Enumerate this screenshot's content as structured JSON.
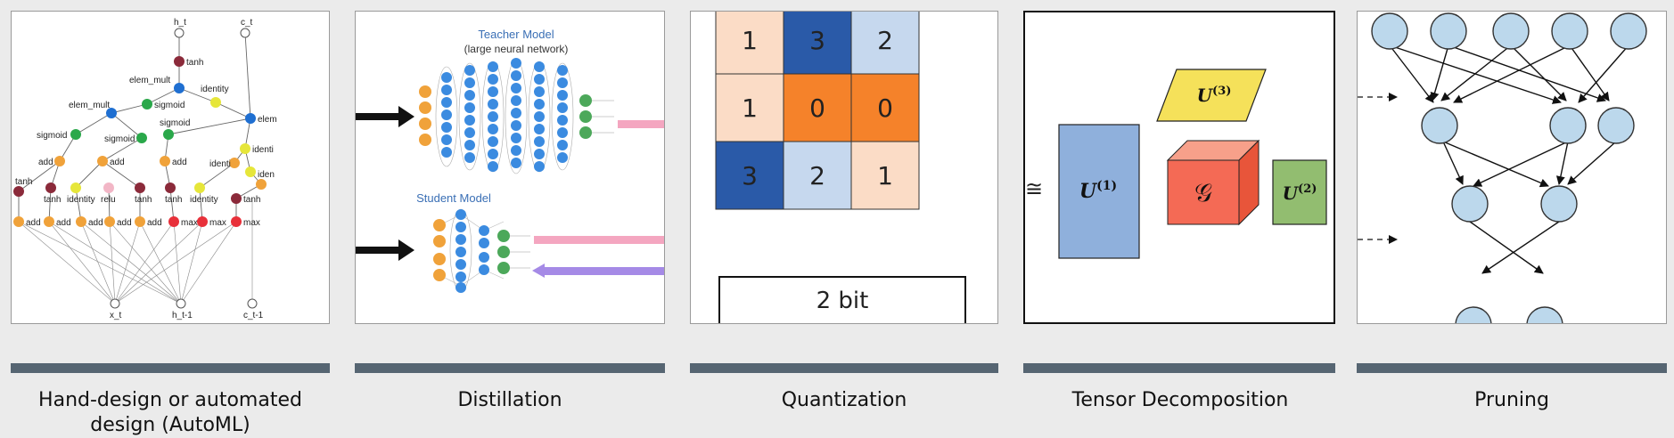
{
  "panels": [
    {
      "id": "automl",
      "caption": "Hand-design or automated design (AutoML)"
    },
    {
      "id": "distillation",
      "caption": "Distillation"
    },
    {
      "id": "quantization",
      "caption": "Quantization"
    },
    {
      "id": "tensor",
      "caption": "Tensor Decomposition"
    },
    {
      "id": "pruning",
      "caption": "Pruning"
    }
  ],
  "automl": {
    "nodes": [
      "h_t",
      "c_t",
      "tanh",
      "elem_mult",
      "identity",
      "elem_mult",
      "sigmoid",
      "elem",
      "sigmoid",
      "sigmoid",
      "sigmoid",
      "identi",
      "add",
      "add",
      "add",
      "identi",
      "tanh",
      "iden",
      "tanh",
      "identity",
      "relu",
      "tanh",
      "tanh",
      "identity",
      "tanh",
      "add",
      "add",
      "add",
      "add",
      "add",
      "max",
      "max",
      "max",
      "x_t",
      "h_t-1",
      "c_t-1"
    ]
  },
  "distillation": {
    "teacher_title": "Teacher Model",
    "teacher_subtitle": "(large neural network)",
    "student_title": "Student Model"
  },
  "quantization": {
    "grid": [
      [
        "1",
        "3",
        "2"
      ],
      [
        "1",
        "0",
        "0"
      ],
      [
        "3",
        "2",
        "1"
      ]
    ],
    "colors": [
      [
        "#fbdcc6",
        "#2a5aa8",
        "#c6d8ee"
      ],
      [
        "#fbdcc6",
        "#f5822a",
        "#f5822a"
      ],
      [
        "#2a5aa8",
        "#c6d8ee",
        "#fbdcc6"
      ]
    ],
    "bits_label": "2 bit"
  },
  "tensor": {
    "approx_symbol": "≅",
    "u1": "U",
    "u1_sup": "(1)",
    "u2": "U",
    "u2_sup": "(2)",
    "u3": "U",
    "u3_sup": "(3)",
    "core": "𝒢"
  },
  "pruning": {
    "layers": [
      5,
      3,
      2,
      2
    ]
  }
}
